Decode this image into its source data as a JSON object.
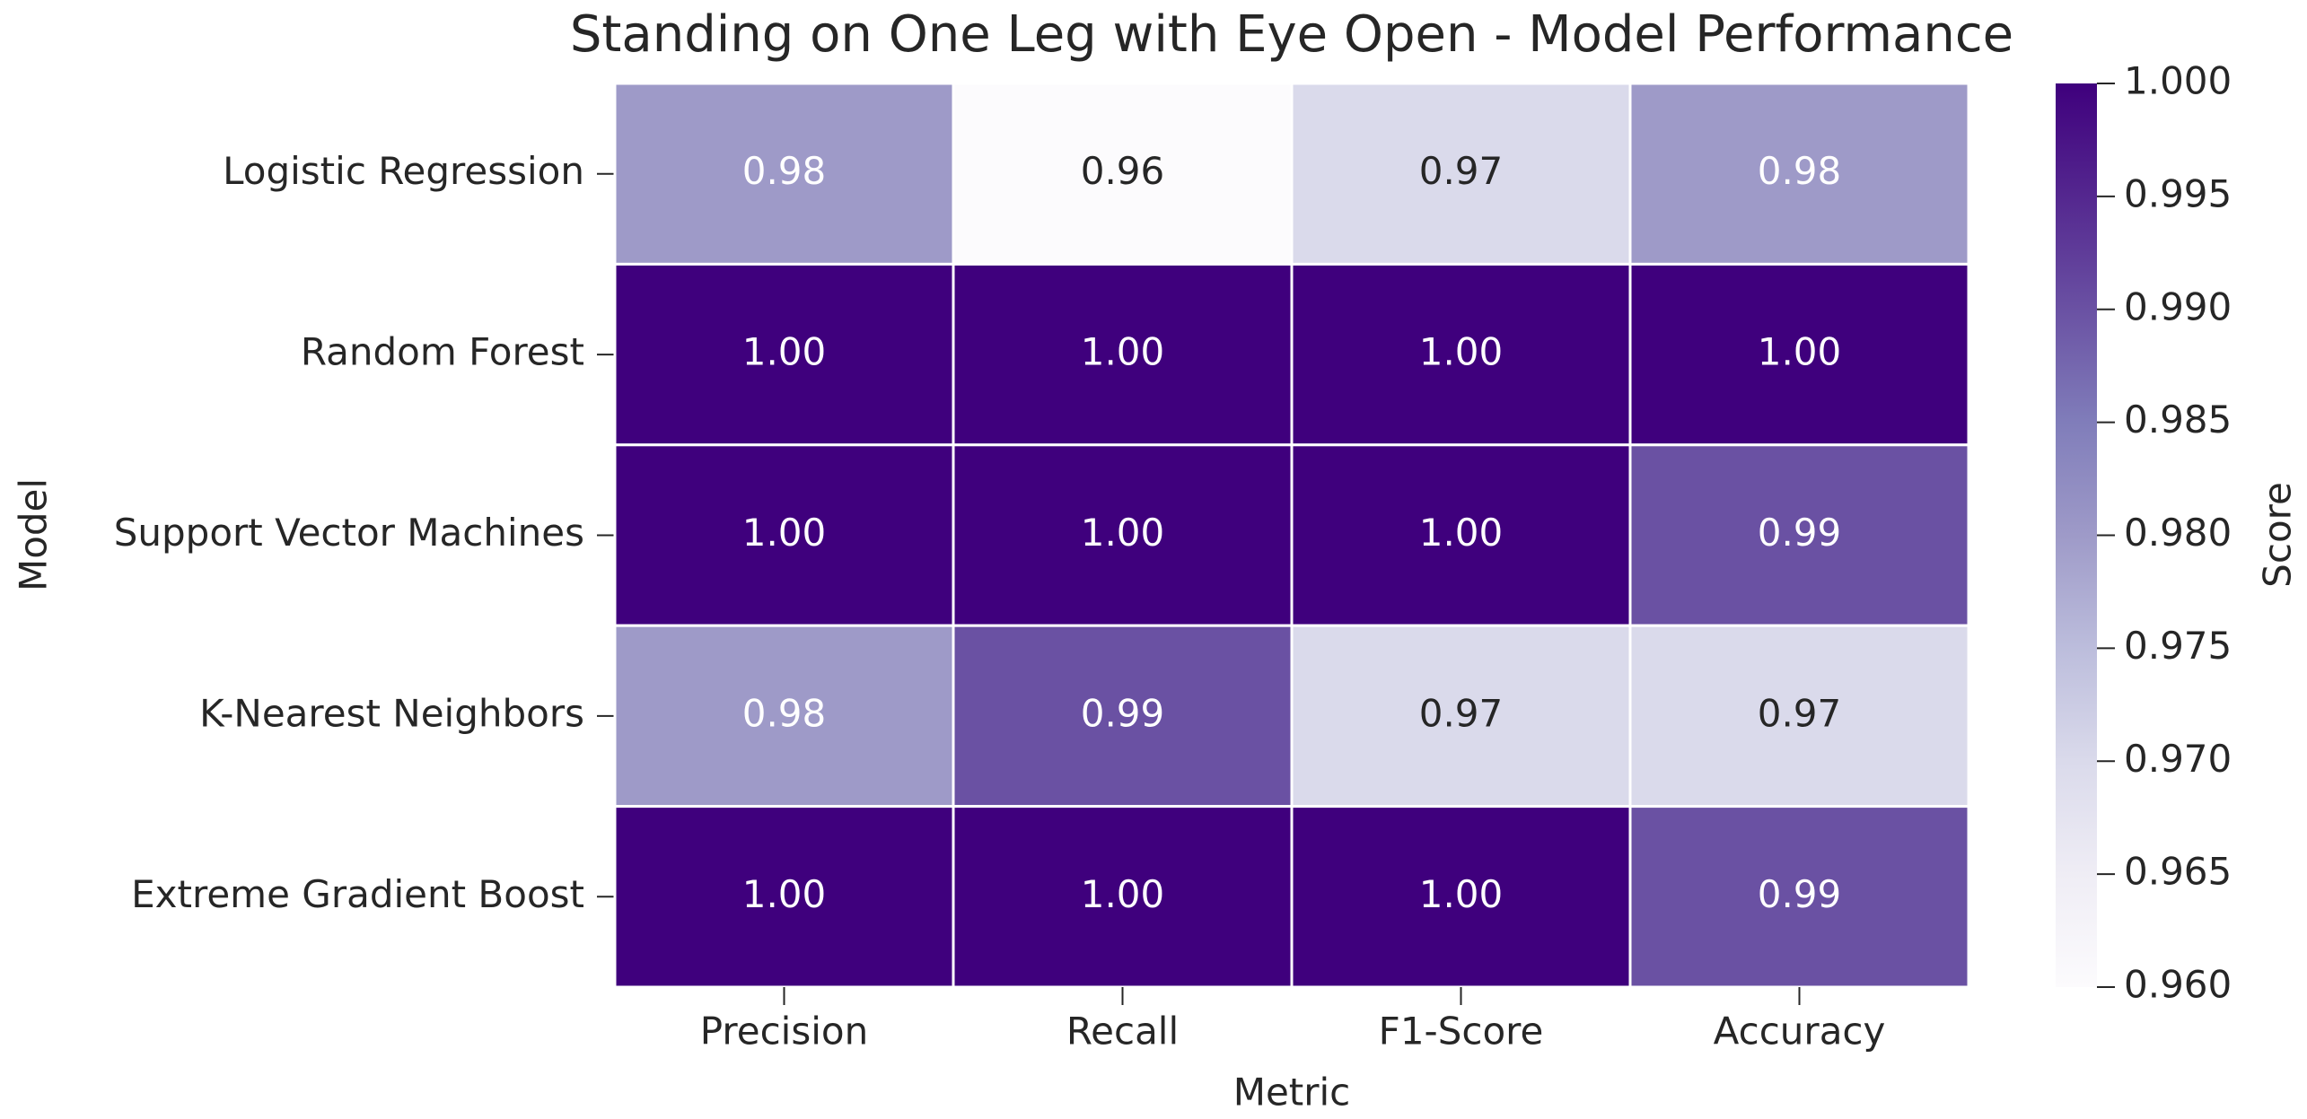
{
  "chart_data": {
    "type": "heatmap",
    "title": "Standing on One Leg with Eye Open - Model Performance",
    "xlabel": "Metric",
    "ylabel": "Model",
    "categories": [
      "Precision",
      "Recall",
      "F1-Score",
      "Accuracy"
    ],
    "rows": [
      "Logistic Regression",
      "Random Forest",
      "Support Vector Machines",
      "K-Nearest Neighbors",
      "Extreme Gradient Boost"
    ],
    "values": [
      [
        0.98,
        0.96,
        0.97,
        0.98
      ],
      [
        1,
        1,
        1,
        1
      ],
      [
        1,
        1,
        1,
        0.99
      ],
      [
        0.98,
        0.99,
        0.97,
        0.97
      ],
      [
        1,
        1,
        1,
        0.99
      ]
    ],
    "value_labels": [
      [
        "0.98",
        "0.96",
        "0.97",
        "0.98"
      ],
      [
        "1.00",
        "1.00",
        "1.00",
        "1.00"
      ],
      [
        "1.00",
        "1.00",
        "1.00",
        "0.99"
      ],
      [
        "0.98",
        "0.99",
        "0.97",
        "0.97"
      ],
      [
        "1.00",
        "1.00",
        "1.00",
        "0.99"
      ]
    ],
    "colormap": "Purples",
    "colorbar_label": "Score",
    "zlim": [
      0.96,
      1.0
    ],
    "zticks": [
      {
        "value": 1.0,
        "label": "1.000"
      },
      {
        "value": 0.995,
        "label": "0.995"
      },
      {
        "value": 0.99,
        "label": "0.990"
      },
      {
        "value": 0.985,
        "label": "0.985"
      },
      {
        "value": 0.98,
        "label": "0.980"
      },
      {
        "value": 0.975,
        "label": "0.975"
      },
      {
        "value": 0.97,
        "label": "0.970"
      },
      {
        "value": 0.965,
        "label": "0.965"
      },
      {
        "value": 0.96,
        "label": "0.960"
      }
    ]
  }
}
